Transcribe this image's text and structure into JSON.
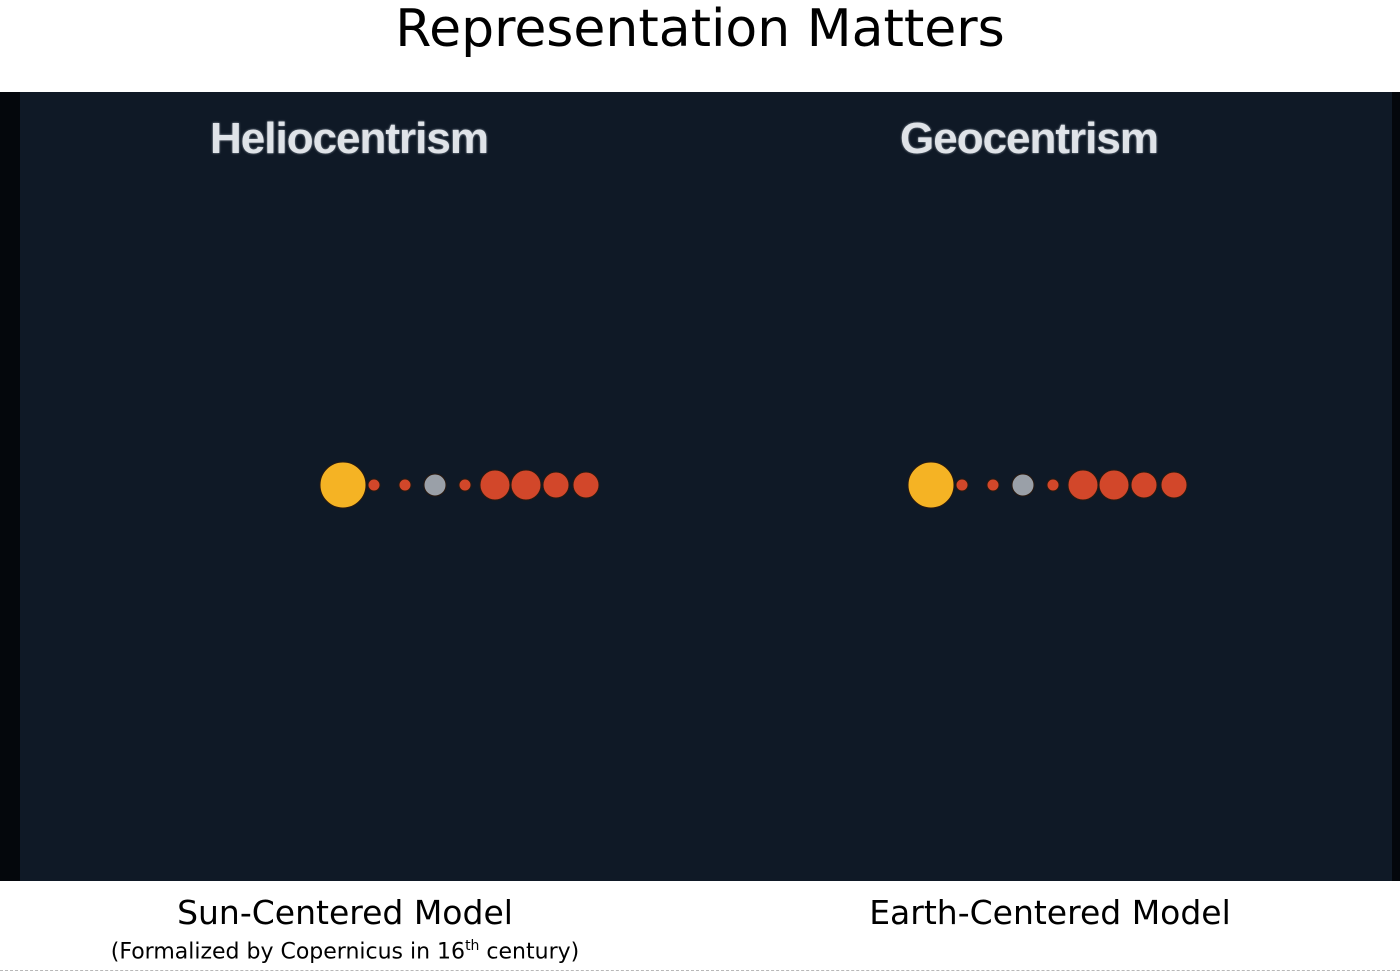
{
  "title": "Representation Matters",
  "panels": [
    {
      "heading": "Heliocentrism",
      "caption": "Sun-Centered Model",
      "subcaption_pre": "(Formalized by Copernicus in 16",
      "subcaption_sup": "th",
      "subcaption_post": " century)"
    },
    {
      "heading": "Geocentrism",
      "caption": "Earth-Centered Model"
    }
  ],
  "colors": {
    "background": "#0f1926",
    "sun": "#f5b324",
    "planet": "#d2472a",
    "moon": "#9aa0a8"
  },
  "bodies": [
    {
      "kind": "sun"
    },
    {
      "kind": "planet"
    },
    {
      "kind": "planet"
    },
    {
      "kind": "moon"
    },
    {
      "kind": "planet"
    },
    {
      "kind": "planet"
    },
    {
      "kind": "planet"
    },
    {
      "kind": "planet"
    },
    {
      "kind": "planet"
    }
  ]
}
